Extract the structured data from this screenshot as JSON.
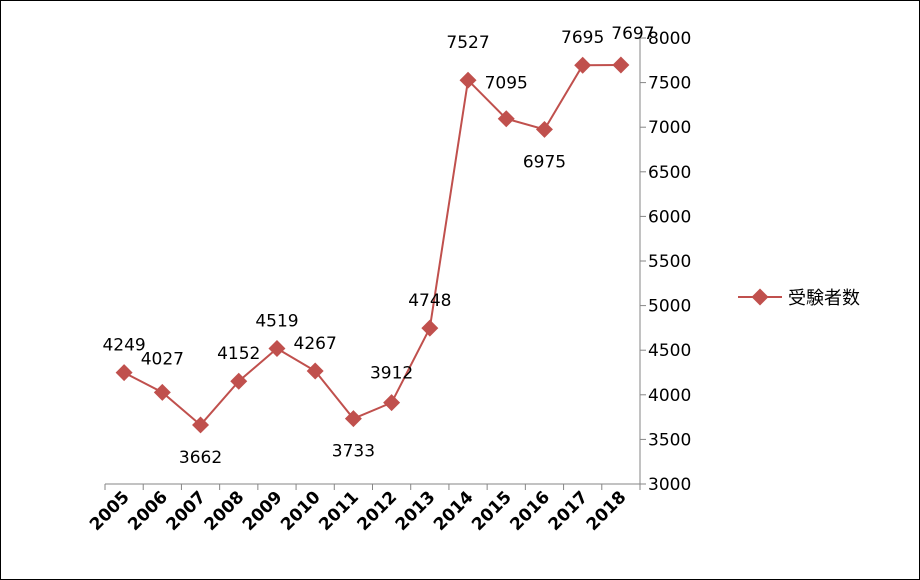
{
  "chart_data": {
    "type": "line",
    "categories": [
      "2005",
      "2006",
      "2007",
      "2008",
      "2009",
      "2010",
      "2011",
      "2012",
      "2013",
      "2014",
      "2015",
      "2016",
      "2017",
      "2018"
    ],
    "series": [
      {
        "name": "受験者数",
        "values": [
          4249,
          4027,
          3662,
          4152,
          4519,
          4267,
          3733,
          3912,
          4748,
          7527,
          7095,
          6975,
          7695,
          7697
        ],
        "color": "#C0504D"
      }
    ],
    "data_labels": [
      "4249",
      "4027",
      "3662",
      "4152",
      "4519",
      "4267",
      "3733",
      "3912",
      "4748",
      "7527",
      "7095",
      "6975",
      "7695",
      "7697"
    ],
    "yticks": [
      "3000",
      "3500",
      "4000",
      "4500",
      "5000",
      "5500",
      "6000",
      "6500",
      "7000",
      "7500",
      "8000"
    ],
    "ylim": [
      3000,
      8000
    ],
    "y_axis_position": "right",
    "legend_position": "right",
    "grid": false
  }
}
